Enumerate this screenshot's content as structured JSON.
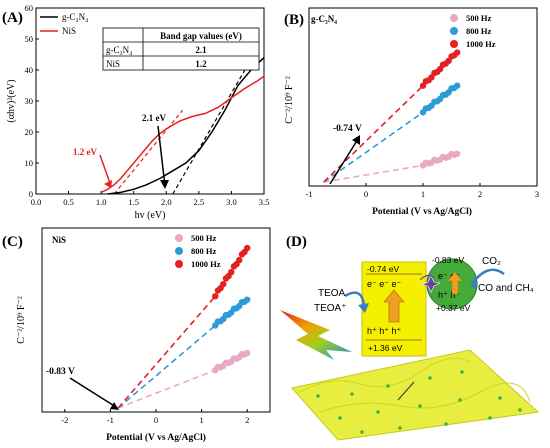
{
  "chart_data": [
    {
      "panel": "(A)",
      "type": "line",
      "xlabel": "hv (eV)",
      "ylabel": "(αhv)²(eV)",
      "xlim": [
        0.0,
        3.5
      ],
      "ylim": [
        0,
        60
      ],
      "xticks": [
        "0.0",
        "0.5",
        "1.0",
        "1.5",
        "2.0",
        "2.5",
        "3.0",
        "3.5"
      ],
      "yticks": [
        "0",
        "10",
        "20",
        "30",
        "40",
        "50",
        "60"
      ],
      "legend_position": "top-left",
      "colors": {
        "gC3N4": "#000000",
        "NiS": "#e52020"
      },
      "series": [
        {
          "name": "g-C₃N₄",
          "color": "#000000",
          "x": [
            1.1,
            1.3,
            1.5,
            1.7,
            1.9,
            2.1,
            2.3,
            2.5,
            2.7,
            2.9,
            3.1,
            3.3,
            3.5
          ],
          "y": [
            0.0,
            0.5,
            1.5,
            3.0,
            5.0,
            7.5,
            10.0,
            14.0,
            20.0,
            27.0,
            35.0,
            40.0,
            44.0
          ]
        },
        {
          "name": "NiS",
          "color": "#e52020",
          "x": [
            1.0,
            1.1,
            1.2,
            1.3,
            1.4,
            1.5,
            1.6,
            1.7,
            1.8,
            1.9,
            2.0,
            2.2,
            2.4,
            2.6,
            2.8,
            3.0,
            3.2,
            3.4,
            3.5
          ],
          "y": [
            0.5,
            1.5,
            3.0,
            5.0,
            7.5,
            10.0,
            12.5,
            15.0,
            17.5,
            19.5,
            21.0,
            23.5,
            25.0,
            26.0,
            28.0,
            31.0,
            34.0,
            36.5,
            38.0
          ]
        }
      ],
      "fits": [
        {
          "color": "#e52020",
          "x": [
            1.2,
            2.25
          ],
          "y": [
            0,
            27
          ]
        },
        {
          "color": "#000000",
          "x": [
            2.1,
            3.4
          ],
          "y": [
            0,
            47
          ]
        }
      ],
      "table": {
        "header": [
          "",
          "Band gap values (eV)"
        ],
        "rows": [
          [
            "g-C₃N₄",
            "2.1"
          ],
          [
            "NiS",
            "1.2"
          ]
        ]
      },
      "annotations": [
        {
          "text": "1.2 eV",
          "color": "#e52020",
          "x": 1.2,
          "y": 0
        },
        {
          "text": "2.1 eV",
          "color": "#000000",
          "x": 2.1,
          "y": 0
        }
      ]
    },
    {
      "panel": "(B)",
      "type": "scatter",
      "sample": "g-C₃N₄",
      "xlabel": "Potential (V vs Ag/AgCl)",
      "ylabel": "C⁻²/10⁹ F⁻²",
      "xlim": [
        -1,
        3
      ],
      "xticks": [
        "-1",
        "0",
        "1",
        "2",
        "3"
      ],
      "legend_position": "top-right",
      "flat_band": {
        "text": "-0.74 V",
        "x": -0.74
      },
      "series": [
        {
          "name": "500 Hz",
          "color": "#e9a8c4",
          "x0": 1.0,
          "x1": 1.6,
          "y0": 0.1,
          "y1": 0.17,
          "n": 13
        },
        {
          "name": "800 Hz",
          "color": "#2d9bd8",
          "x0": 1.0,
          "x1": 1.6,
          "y0": 0.42,
          "y1": 0.58,
          "n": 13
        },
        {
          "name": "1000 Hz",
          "color": "#e52020",
          "x0": 1.0,
          "x1": 1.6,
          "y0": 0.58,
          "y1": 0.78,
          "n": 13
        }
      ]
    },
    {
      "panel": "(C)",
      "type": "scatter",
      "sample": "NiS",
      "xlabel": "Potential (V vs Ag/AgCl)",
      "ylabel": "C⁻²/10⁹ F⁻²",
      "xlim": [
        -2.5,
        2.5
      ],
      "xticks": [
        "-2",
        "-1",
        "0",
        "1",
        "2"
      ],
      "legend_position": "top-right",
      "flat_band": {
        "text": "-0.83 V",
        "x": -0.83
      },
      "series": [
        {
          "name": "500 Hz",
          "color": "#e9a8c4",
          "x0": 1.3,
          "x1": 2.0,
          "y0": 0.22,
          "y1": 0.32,
          "n": 13
        },
        {
          "name": "800 Hz",
          "color": "#2d9bd8",
          "x0": 1.3,
          "x1": 2.0,
          "y0": 0.48,
          "y1": 0.63,
          "n": 13
        },
        {
          "name": "1000 Hz",
          "color": "#e52020",
          "x0": 1.3,
          "x1": 2.0,
          "y0": 0.65,
          "y1": 0.93,
          "n": 13
        }
      ]
    }
  ],
  "panel_labels": {
    "a": "(A)",
    "b": "(B)",
    "c": "(C)",
    "d": "(D)"
  },
  "scheme": {
    "cb_gc3n4": "-0.74 eV",
    "vb_gc3n4": "+1.36 eV",
    "cb_nis": "-0.83 eV",
    "vb_nis": "+0.37 eV",
    "electrons": "e⁻  e⁻  e⁻",
    "holes": "h⁺  h⁺  h⁺",
    "nis_electrons": "e⁻ e⁻",
    "nis_holes": "h⁺ h⁺",
    "teoa": "TEOA",
    "teoa_ox": "TEOA⁺",
    "co2": "CO₂",
    "products": "CO and CH₄",
    "colors": {
      "gc3n4": "#f5f000",
      "nis": "#44aa3a",
      "arrow": "#f0a020",
      "swirl": "#3a7fc1"
    }
  }
}
